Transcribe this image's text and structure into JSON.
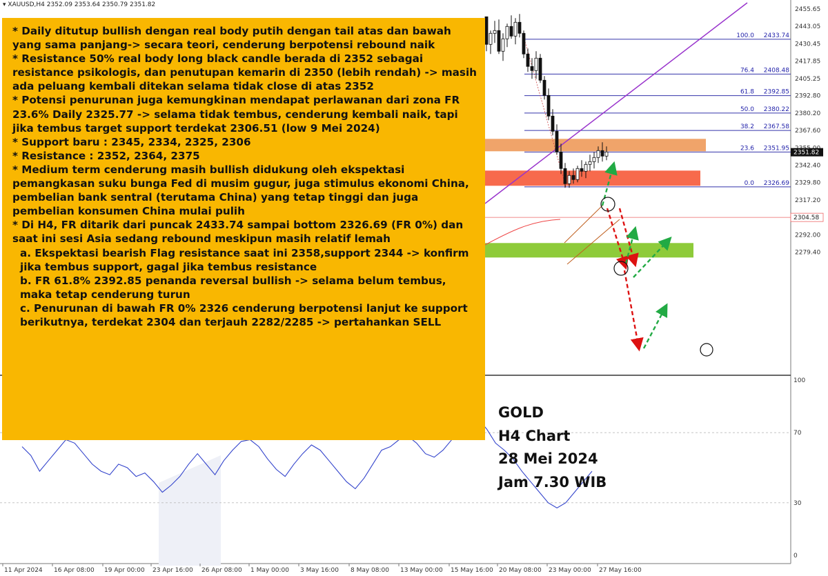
{
  "header": {
    "symbol": "XAUUSD,H4",
    "ohlc": "2352.09 2353.64 2350.79 2351.82"
  },
  "notes": [
    {
      "text": "* Daily ditutup bullish dengan real body putih dengan tail atas dan bawah yang sama panjang-> secara teori, cenderung berpotensi rebound naik",
      "indent": false
    },
    {
      "text": "* Resistance 50% real body long black candle berada di 2352 sebagai resistance psikologis, dan penutupan kemarin di 2350 (lebih rendah) -> masih ada peluang kembali ditekan selama tidak close di atas 2352",
      "indent": false
    },
    {
      "text": "* Potensi penurunan juga kemungkinan mendapat perlawanan dari zona FR 23.6% Daily 2325.77 -> selama tidak tembus, cenderung kembali naik, tapi jika tembus target support terdekat 2306.51 (low 9 Mei 2024)",
      "indent": false
    },
    {
      "text": "* Support baru : 2345, 2334, 2325, 2306",
      "indent": false
    },
    {
      "text": "* Resistance : 2352, 2364, 2375",
      "indent": false
    },
    {
      "text": "* Medium term cenderung masih bullish didukung oleh ekspektasi pemangkasan suku bunga Fed di musim gugur, juga stimulus ekonomi China, pembelian bank sentral (terutama China) yang tetap tinggi dan juga pembelian konsumen China mulai pulih",
      "indent": false
    },
    {
      "text": "* Di H4, FR ditarik dari puncak 2433.74 sampai bottom 2326.69 (FR 0%) dan saat ini sesi Asia sedang rebound meskipun masih relatif lemah",
      "indent": false
    },
    {
      "text": "a. Ekspektasi bearish Flag resistance saat ini 2358,support 2344 -> konfirm jika tembus support, gagal jika tembus resistance",
      "indent": true
    },
    {
      "text": "b. FR 61.8% 2392.85 penanda reversal bullish -> selama belum tembus, maka tetap cenderung turun",
      "indent": true
    },
    {
      "text": "c. Penurunan di bawah FR 0% 2326 cenderung berpotensi lanjut ke support berikutnya, terdekat 2304 dan terjauh 2282/2285 -> pertahankan SELL",
      "indent": true
    }
  ],
  "caption": {
    "line1": "GOLD",
    "line2": "H4 Chart",
    "line3": "28 Mei 2024",
    "line4": "Jam 7.30 WIB"
  },
  "colors": {
    "candle": "#111111",
    "fib_line": "#3333aa",
    "fib_text": "#2222aa",
    "channel": "#9933cc",
    "resistance_zone": "#f0a46a",
    "support_zone_1": "#f76a4c",
    "support_zone_2": "#8ecb3a",
    "rsi": "#3344cc",
    "arrow_red": "#dd1111",
    "arrow_green": "#22aa44",
    "note_bg": "#f9b701"
  },
  "chart_data": [
    {
      "type": "candlestick",
      "title": "XAUUSD,H4",
      "y_ticks": [
        2455.65,
        2443.05,
        2430.45,
        2417.85,
        2405.25,
        2392.8,
        2380.2,
        2367.6,
        2355.0,
        2342.4,
        2329.8,
        2317.2,
        2304.6,
        2292.0,
        2279.4
      ],
      "ylim": [
        2275.0,
        2460.0
      ],
      "x_ticks": [
        "11 Apr 2024",
        "16 Apr 08:00",
        "19 Apr 00:00",
        "23 Apr 16:00",
        "26 Apr 08:00",
        "1 May 00:00",
        "3 May 16:00",
        "8 May 08:00",
        "13 May 00:00",
        "15 May 16:00",
        "20 May 08:00",
        "23 May 00:00",
        "27 May 16:00"
      ],
      "last_price": "2351.82",
      "support_line": "2304.58",
      "fibonacci": [
        {
          "level": "100.0",
          "price": "2433.74"
        },
        {
          "level": "76.4",
          "price": "2408.48"
        },
        {
          "level": "61.8",
          "price": "2392.85"
        },
        {
          "level": "50.0",
          "price": "2380.22"
        },
        {
          "level": "38.2",
          "price": "2367.58"
        },
        {
          "level": "23.6",
          "price": "2351.95"
        },
        {
          "level": "0.0",
          "price": "2326.69"
        }
      ],
      "zones": [
        {
          "name": "resistance",
          "from": 2352.5,
          "to": 2361.5
        },
        {
          "name": "support",
          "from": 2327.5,
          "to": 2338.5
        },
        {
          "name": "support",
          "from": 2275.5,
          "to": 2286.0
        }
      ],
      "candles_ohlc": [
        [
          2450,
          2450,
          2425,
          2430
        ],
        [
          2430,
          2440,
          2423,
          2438
        ],
        [
          2438,
          2447,
          2431,
          2440
        ],
        [
          2440,
          2448,
          2423,
          2425
        ],
        [
          2425,
          2438,
          2418,
          2434
        ],
        [
          2434,
          2445,
          2428,
          2443
        ],
        [
          2443,
          2451,
          2434,
          2436
        ],
        [
          2436,
          2449,
          2430,
          2446
        ],
        [
          2446,
          2452,
          2435,
          2438
        ],
        [
          2438,
          2440,
          2420,
          2423
        ],
        [
          2423,
          2427,
          2410,
          2414
        ],
        [
          2414,
          2420,
          2405,
          2411
        ],
        [
          2411,
          2425,
          2405,
          2420
        ],
        [
          2420,
          2423,
          2402,
          2404
        ],
        [
          2404,
          2407,
          2390,
          2393
        ],
        [
          2393,
          2398,
          2375,
          2378
        ],
        [
          2378,
          2383,
          2364,
          2367
        ],
        [
          2367,
          2372,
          2350,
          2352
        ],
        [
          2352,
          2358,
          2336,
          2340
        ],
        [
          2340,
          2344,
          2326,
          2329
        ],
        [
          2329,
          2338,
          2326,
          2335
        ],
        [
          2335,
          2340,
          2329,
          2332
        ],
        [
          2332,
          2342,
          2330,
          2340
        ],
        [
          2340,
          2346,
          2334,
          2338
        ],
        [
          2338,
          2345,
          2333,
          2343
        ],
        [
          2343,
          2350,
          2338,
          2345
        ],
        [
          2345,
          2352,
          2340,
          2348
        ],
        [
          2348,
          2356,
          2344,
          2353
        ],
        [
          2353,
          2359,
          2345,
          2349
        ],
        [
          2349,
          2356,
          2346,
          2352
        ]
      ]
    },
    {
      "type": "line",
      "title": "RSI",
      "y_ticks": [
        100,
        70,
        30,
        0
      ],
      "ylim": [
        0,
        100
      ],
      "series": [
        {
          "values": [
            62,
            57,
            48,
            54,
            60,
            66,
            64,
            58,
            52,
            48,
            46,
            52,
            50,
            45,
            47,
            42,
            36,
            40,
            45,
            52,
            58,
            52,
            46,
            54,
            60,
            65,
            66,
            62,
            55,
            49,
            45,
            52,
            58,
            63,
            60,
            54,
            48,
            42,
            38,
            44,
            52,
            60,
            62,
            66,
            68,
            64,
            58,
            56,
            60,
            66,
            68,
            74,
            78,
            72,
            64,
            60,
            55,
            48,
            42,
            36,
            30,
            27,
            30,
            36,
            42,
            48
          ]
        }
      ]
    }
  ]
}
